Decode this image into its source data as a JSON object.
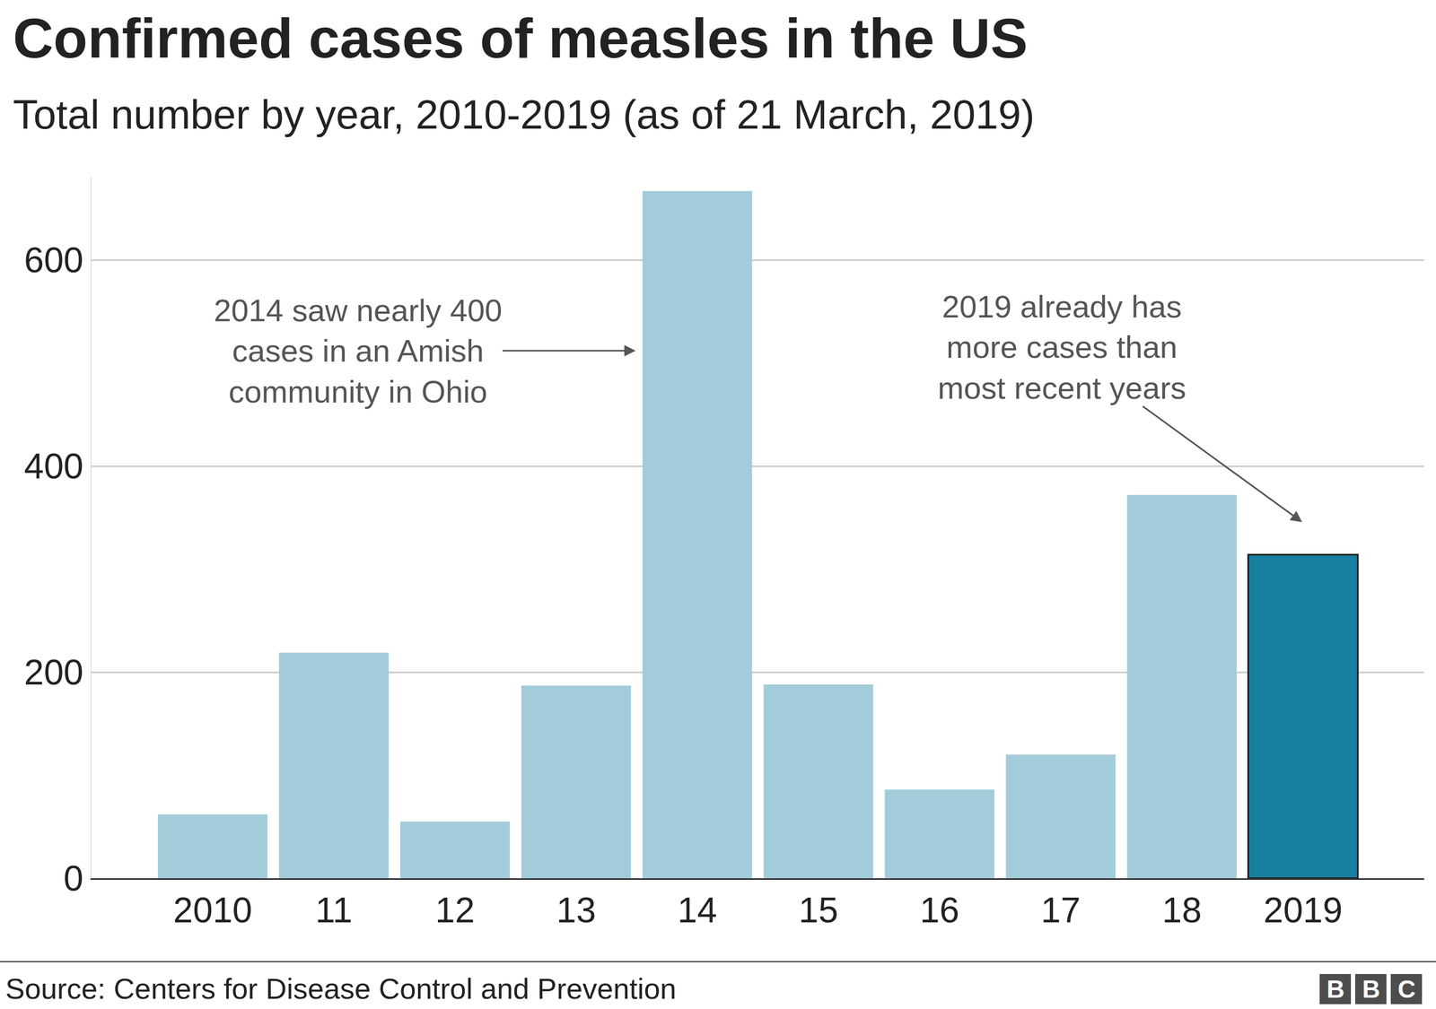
{
  "chart_data": {
    "type": "bar",
    "title": "Confirmed cases of measles in the US",
    "subtitle": "Total number by year, 2010-2019 (as of 21 March, 2019)",
    "categories": [
      "2010",
      "11",
      "12",
      "13",
      "14",
      "15",
      "16",
      "17",
      "18",
      "2019"
    ],
    "values": [
      62,
      219,
      55,
      187,
      667,
      188,
      86,
      120,
      372,
      314
    ],
    "colors": [
      "#a3ccda",
      "#a3ccda",
      "#a3ccda",
      "#a3ccda",
      "#a3ccda",
      "#a3ccda",
      "#a3ccda",
      "#a3ccda",
      "#a3ccda",
      "#177fa0"
    ],
    "ylim": [
      0,
      680
    ],
    "yticks": [
      0,
      200,
      400,
      600
    ],
    "grid": true,
    "annotations": [
      {
        "text": "2014 saw nearly 400\ncases in an Amish\ncommunity in Ohio",
        "category": "14"
      },
      {
        "text": "2019 already has\nmore cases than\nmost recent years",
        "category": "2019"
      }
    ],
    "source": "Source: Centers for Disease Control and Prevention",
    "logo": "BBC"
  }
}
